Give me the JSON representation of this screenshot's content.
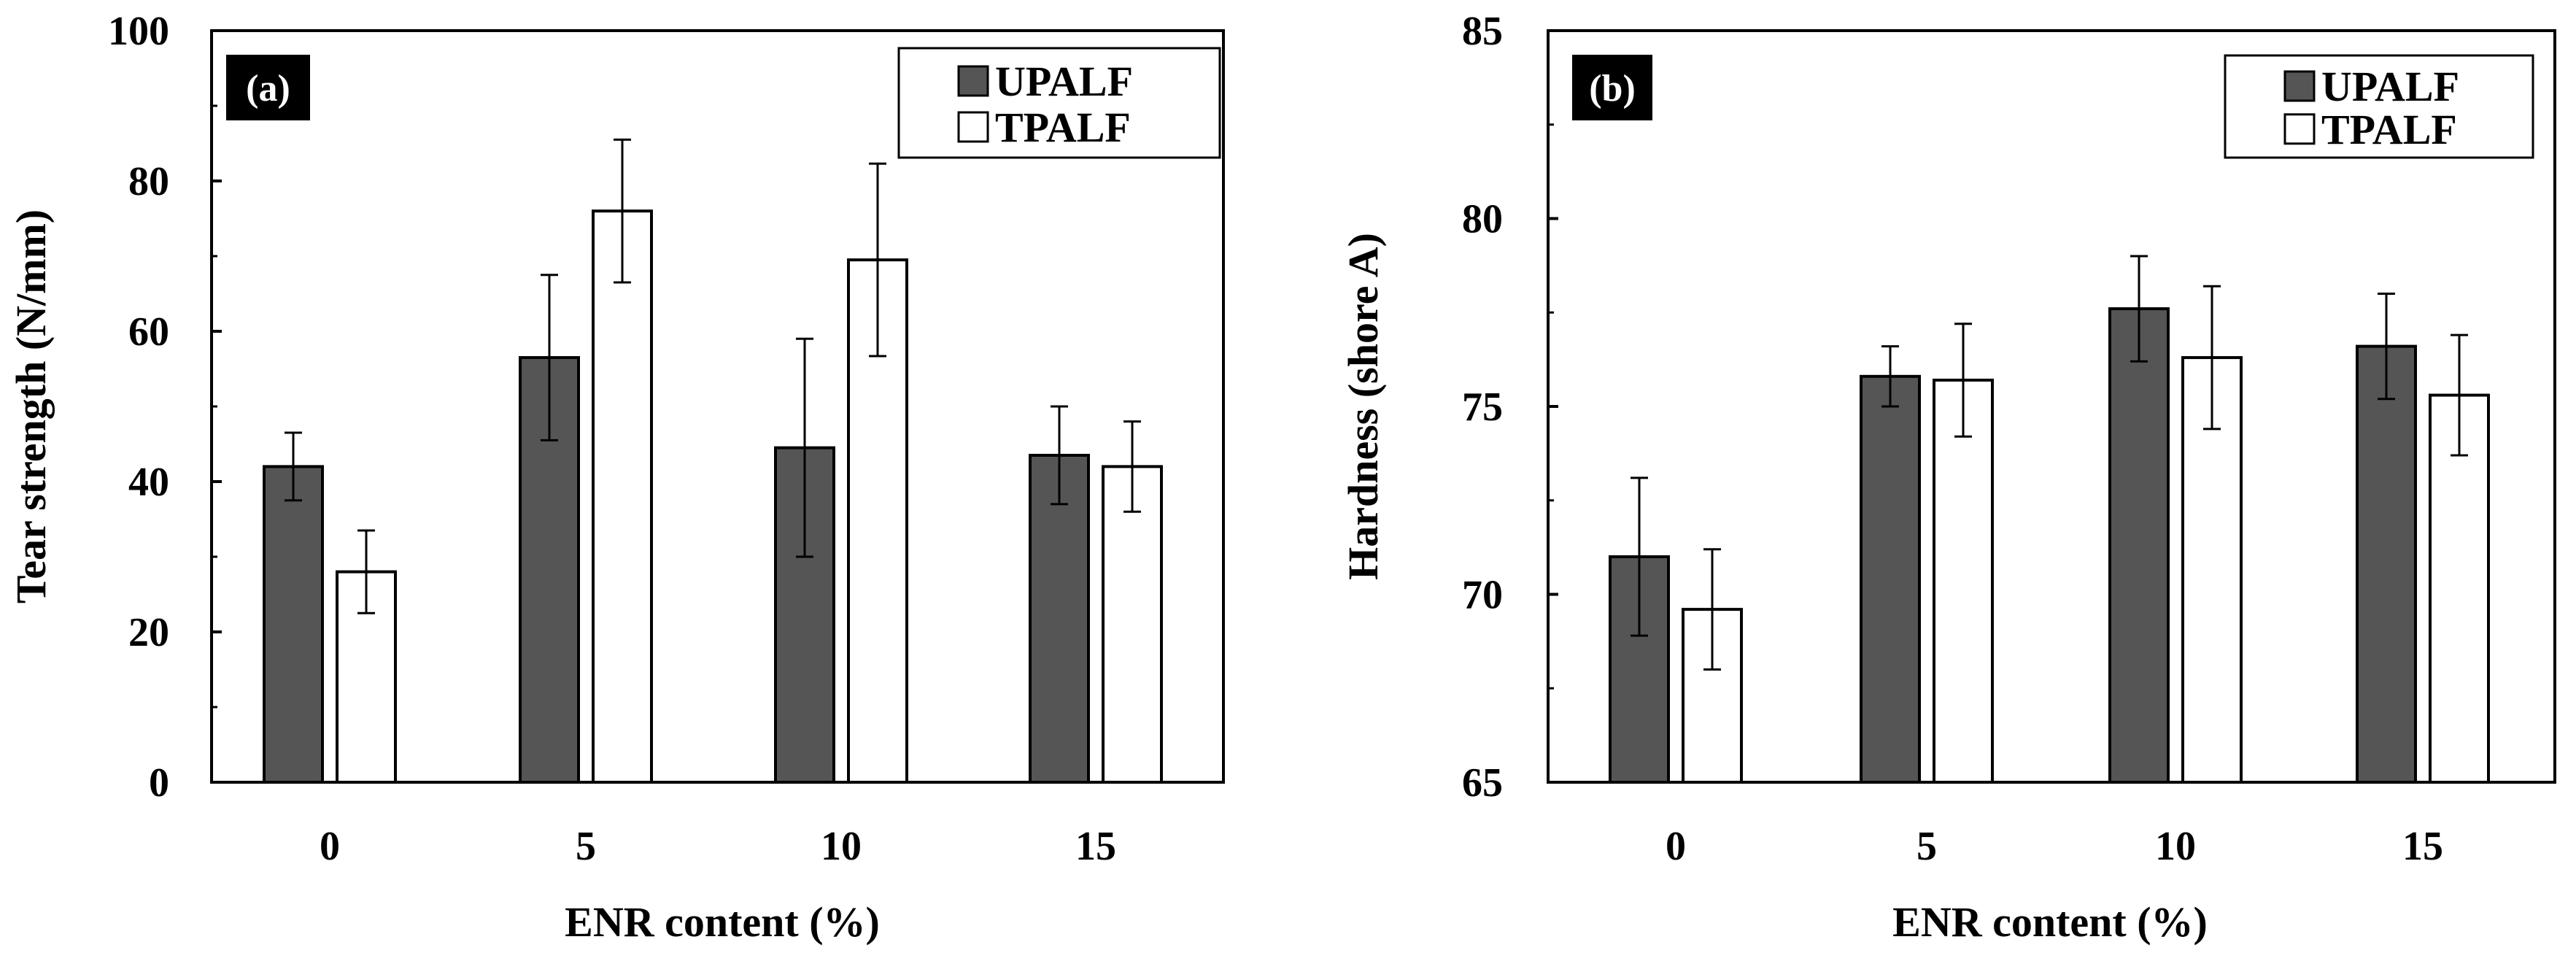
{
  "colors": {
    "upalf": "#555555",
    "tpalf": "#ffffff",
    "stroke": "#000000",
    "panel_tag_bg": "#000000"
  },
  "chart_data": [
    {
      "type": "bar",
      "panel_label": "(a)",
      "categories": [
        "0",
        "5",
        "10",
        "15"
      ],
      "series": [
        {
          "name": "UPALF",
          "values": [
            42,
            56.5,
            44.5,
            43.5
          ],
          "errors": [
            4.5,
            11,
            14.5,
            6.5
          ]
        },
        {
          "name": "TPALF",
          "values": [
            28,
            76,
            69.5,
            42
          ],
          "errors": [
            5.5,
            9.5,
            12.8,
            6
          ]
        }
      ],
      "xlabel": "ENR content (%)",
      "ylabel": "Tear strength (N/mm)",
      "ylim": [
        0,
        100
      ],
      "yticks": [
        0,
        20,
        40,
        60,
        80,
        100
      ],
      "ytick_labels": [
        "0",
        "20",
        "40",
        "60",
        "80",
        "100"
      ],
      "legend": {
        "position": "top-right",
        "entries": [
          "UPALF",
          "TPALF"
        ]
      },
      "grid": false
    },
    {
      "type": "bar",
      "panel_label": "(b)",
      "categories": [
        "0",
        "5",
        "10",
        "15"
      ],
      "series": [
        {
          "name": "UPALF",
          "values": [
            71,
            75.8,
            77.6,
            76.6
          ],
          "errors": [
            2.1,
            0.8,
            1.4,
            1.4
          ]
        },
        {
          "name": "TPALF",
          "values": [
            69.6,
            75.7,
            76.3,
            75.3
          ],
          "errors": [
            1.6,
            1.5,
            1.9,
            1.6
          ]
        }
      ],
      "xlabel": "ENR content (%)",
      "ylabel": "Hardness (shore A)",
      "ylim": [
        65,
        85
      ],
      "yticks": [
        65,
        70,
        75,
        80,
        85
      ],
      "ytick_labels": [
        "65",
        "70",
        "75",
        "80",
        "85"
      ],
      "legend": {
        "position": "top-right",
        "entries": [
          "UPALF",
          "TPALF"
        ]
      },
      "grid": false
    }
  ]
}
